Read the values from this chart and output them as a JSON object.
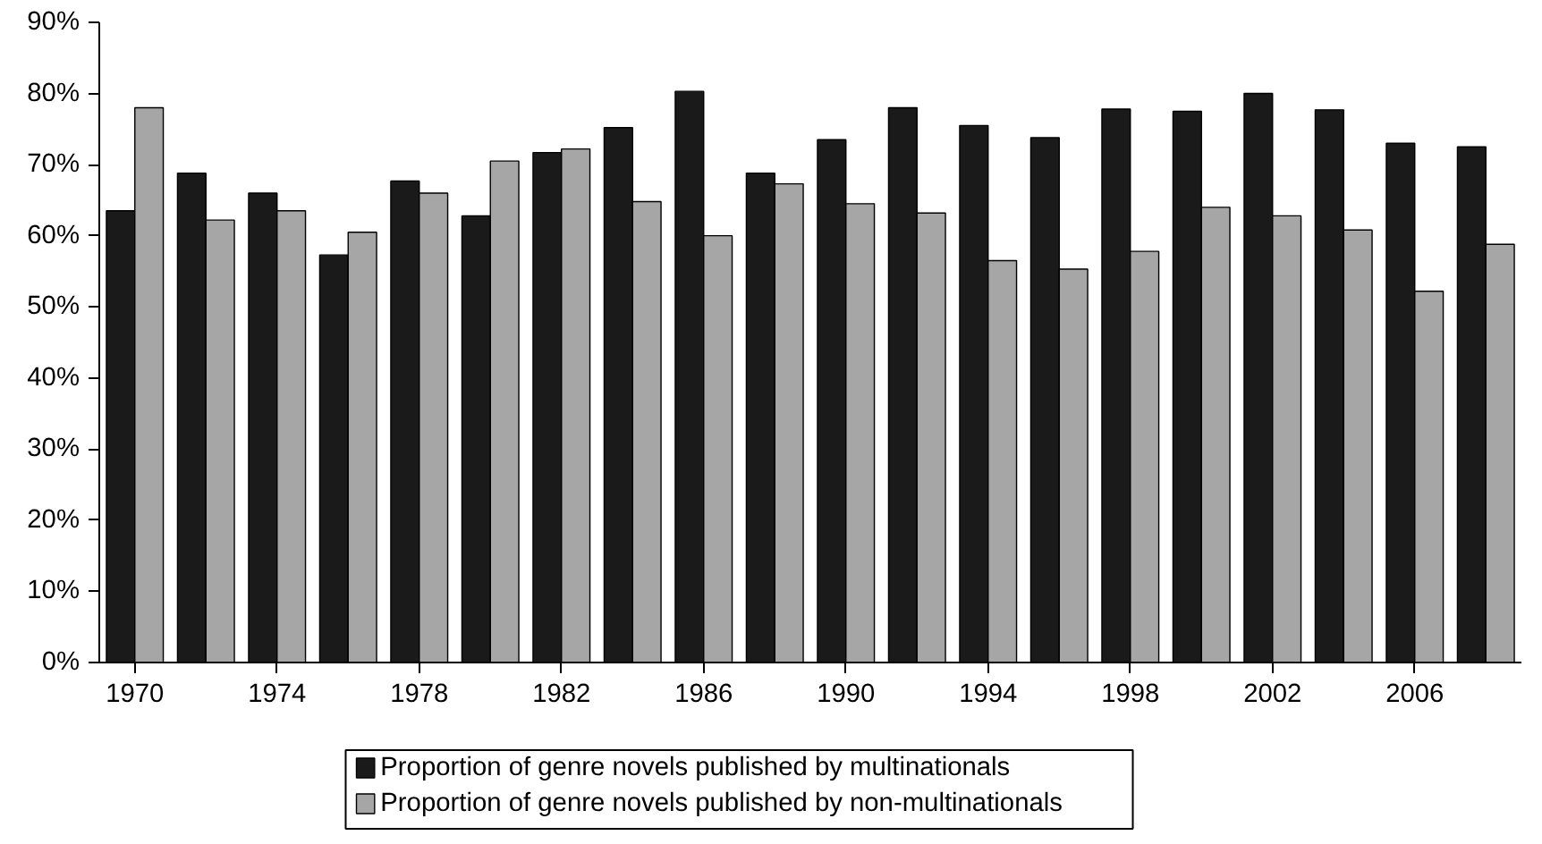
{
  "chart_data": {
    "type": "bar",
    "categories": [
      "1970",
      null,
      "1974",
      null,
      "1978",
      null,
      "1982",
      null,
      "1986",
      null,
      "1990",
      null,
      "1994",
      null,
      "1998",
      null,
      "2002",
      null,
      "2006",
      null
    ],
    "series": [
      {
        "name": "Proportion of genre novels published by multinationals",
        "color": "#1a1a1a",
        "values": [
          63.5,
          68.8,
          66,
          57.3,
          67.7,
          62.8,
          71.7,
          75.2,
          80.3,
          68.8,
          73.5,
          78,
          75.5,
          73.8,
          77.8,
          77.5,
          80,
          77.7,
          73,
          72.5
        ]
      },
      {
        "name": "Proportion of genre novels published by non-multinationals",
        "color": "#a6a6a6",
        "values": [
          78,
          62.2,
          63.5,
          60.5,
          66,
          70.5,
          72.2,
          64.8,
          60,
          67.3,
          64.5,
          63.2,
          56.5,
          55.3,
          57.8,
          64,
          62.8,
          60.8,
          52.2,
          58.8
        ]
      }
    ],
    "ylim": [
      0,
      90
    ],
    "yticks": [
      {
        "value": 0,
        "label": "0%"
      },
      {
        "value": 10,
        "label": "10%"
      },
      {
        "value": 20,
        "label": "20%"
      },
      {
        "value": 30,
        "label": "30%"
      },
      {
        "value": 40,
        "label": "40%"
      },
      {
        "value": 50,
        "label": "50%"
      },
      {
        "value": 60,
        "label": "60%"
      },
      {
        "value": 70,
        "label": "70%"
      },
      {
        "value": 80,
        "label": "80%"
      },
      {
        "value": 90,
        "label": "90%"
      }
    ],
    "grid": false,
    "legend": "bottom"
  }
}
